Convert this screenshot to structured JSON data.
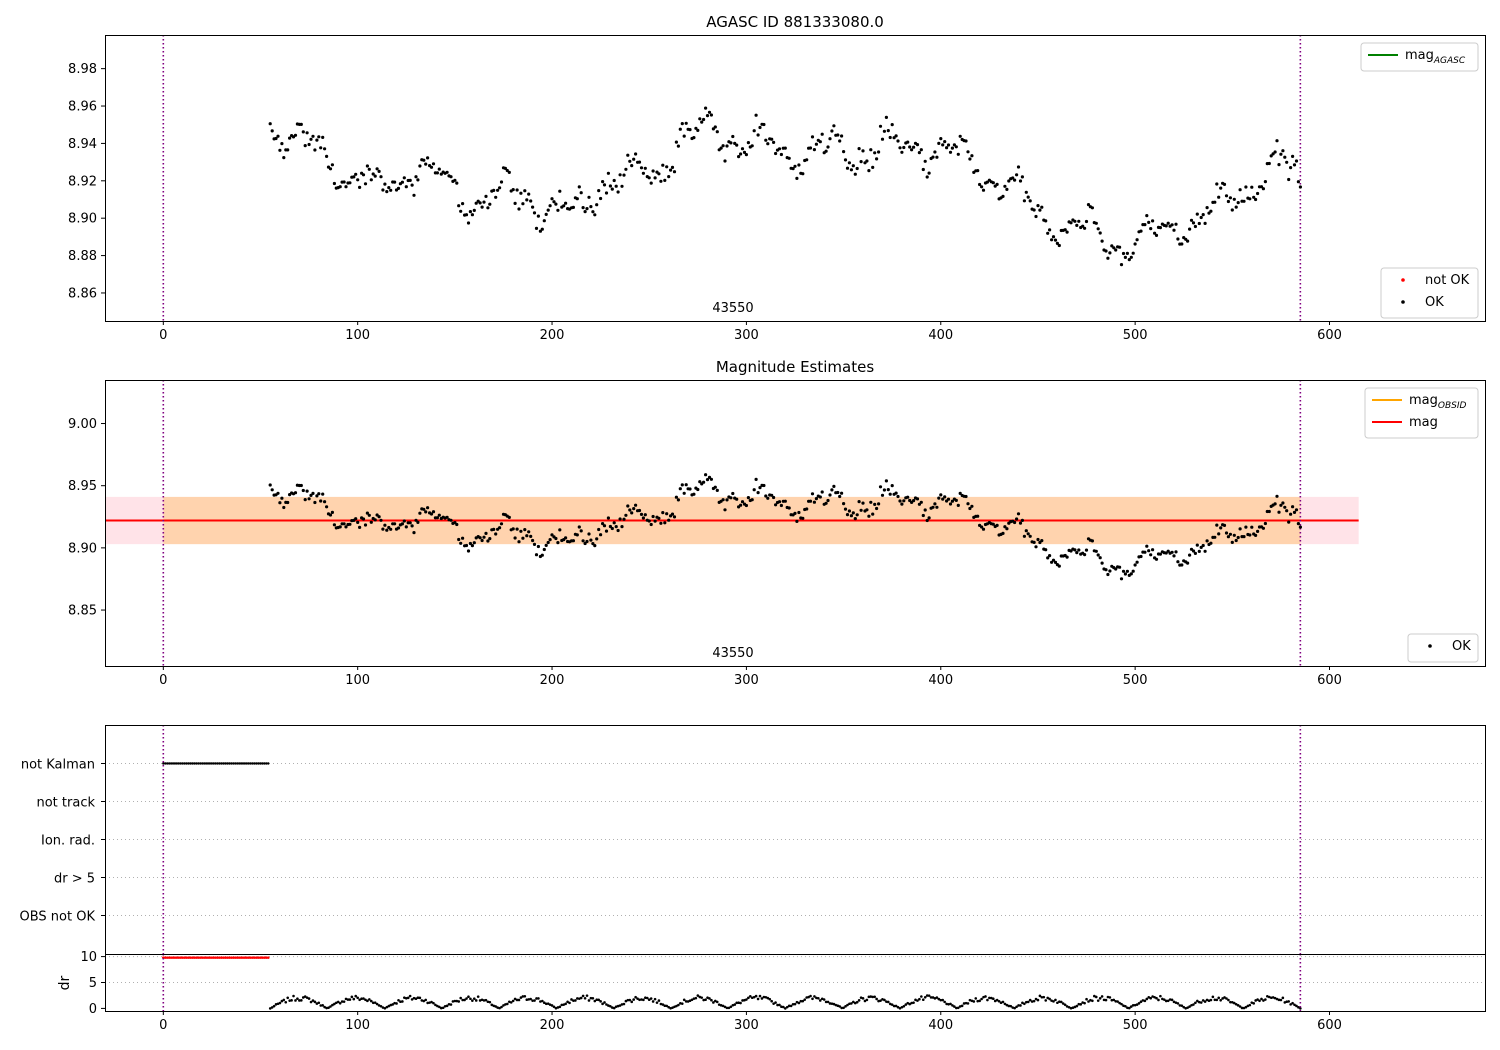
{
  "chart_data": [
    {
      "type": "scatter",
      "title": "AGASC ID 881333080.0",
      "xlim": [
        -30,
        680
      ],
      "ylim": [
        8.845,
        8.998
      ],
      "xticks": [
        0,
        100,
        200,
        300,
        400,
        500,
        600
      ],
      "yticks": [
        8.86,
        8.88,
        8.9,
        8.92,
        8.94,
        8.96,
        8.98
      ],
      "ytick_labels": [
        "8.86",
        "8.88",
        "8.90",
        "8.92",
        "8.94",
        "8.96",
        "8.98"
      ],
      "vlines": [
        0,
        585
      ],
      "obsid_label": {
        "text": "43550",
        "x": 292
      },
      "legend_lines": [
        {
          "label": "mag",
          "sub": "AGASC",
          "color": "#008000"
        }
      ],
      "legend_points": [
        {
          "label": "not OK",
          "color": "#ff0000"
        },
        {
          "label": "OK",
          "color": "#000000"
        }
      ],
      "series": [
        {
          "name": "OK",
          "color": "#000000",
          "x_range": [
            55,
            585
          ],
          "control_x": [
            55,
            80,
            110,
            130,
            160,
            180,
            210,
            225,
            250,
            280,
            300,
            330,
            360,
            390,
            420,
            440,
            460,
            480,
            500,
            520,
            540,
            560,
            575,
            585
          ],
          "control_y": [
            8.95,
            8.935,
            8.915,
            8.928,
            8.908,
            8.913,
            8.9,
            8.92,
            8.923,
            8.952,
            8.94,
            8.935,
            8.937,
            8.94,
            8.928,
            8.912,
            8.897,
            8.892,
            8.885,
            8.898,
            8.9,
            8.92,
            8.928,
            8.92
          ],
          "scatter": 0.011
        }
      ]
    },
    {
      "type": "scatter",
      "title": "Magnitude Estimates",
      "xlim": [
        -30,
        680
      ],
      "ylim": [
        8.805,
        9.035
      ],
      "xticks": [
        0,
        100,
        200,
        300,
        400,
        500,
        600
      ],
      "yticks": [
        8.85,
        8.9,
        8.95,
        9.0
      ],
      "ytick_labels": [
        "8.85",
        "8.90",
        "8.95",
        "9.00"
      ],
      "vlines": [
        0,
        585
      ],
      "obsid_label": {
        "text": "43550",
        "x": 292
      },
      "mag": 8.922,
      "mag_band": [
        8.903,
        8.941
      ],
      "band_x_end": 615,
      "obsid_segment": [
        0,
        585
      ],
      "legend_lines": [
        {
          "label": "mag",
          "sub": "OBSID",
          "color": "#ffa500"
        },
        {
          "label": "mag",
          "sub": "",
          "color": "#ff0000"
        }
      ],
      "legend_points": [
        {
          "label": "OK",
          "color": "#000000"
        }
      ],
      "series": [
        {
          "name": "OK",
          "color": "#000000",
          "same_as_panel": 0
        }
      ]
    },
    {
      "type": "scatter",
      "xlim": [
        -30,
        680
      ],
      "xticks": [
        0,
        100,
        200,
        300,
        400,
        500,
        600
      ],
      "vlines": [
        0,
        585
      ],
      "flag_labels": [
        "not Kalman",
        "not track",
        "Ion. rad.",
        "dr > 5",
        "OBS not OK"
      ],
      "flags": [
        {
          "label": "not Kalman",
          "x_range": [
            0,
            54
          ],
          "color": "#000000"
        }
      ]
    },
    {
      "type": "scatter",
      "ylabel": "dr",
      "xlim": [
        -30,
        680
      ],
      "ylim": [
        -0.5,
        10.5
      ],
      "xticks": [
        0,
        100,
        200,
        300,
        400,
        500,
        600
      ],
      "yticks": [
        0,
        5,
        10
      ],
      "ytick_labels": [
        "0",
        "5",
        "10"
      ],
      "vlines": [
        0,
        585
      ],
      "series": [
        {
          "name": "not OK",
          "color": "#ff0000",
          "x_range": [
            0,
            54
          ],
          "y": 9.8
        },
        {
          "name": "OK",
          "color": "#000000",
          "x_range": [
            55,
            585
          ],
          "segment_count": 18,
          "y_max": 2.5
        }
      ]
    }
  ]
}
